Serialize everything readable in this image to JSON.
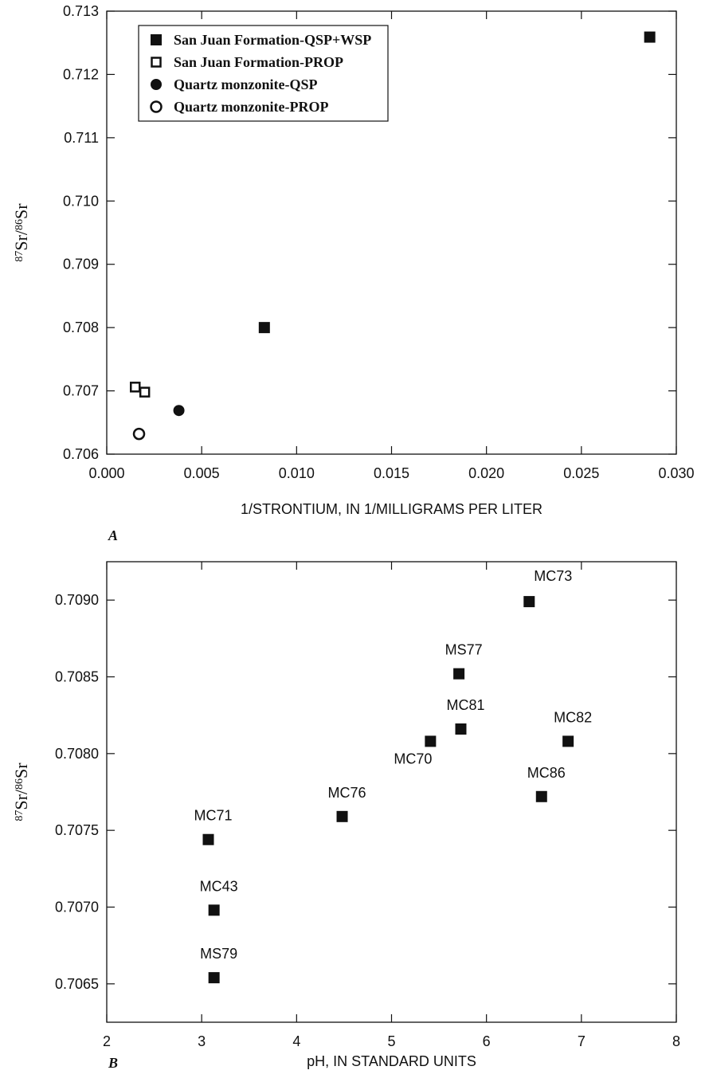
{
  "chart_data": [
    {
      "type": "scatter",
      "panel": "A",
      "xlabel": "1/STRONTIUM, IN 1/MILLIGRAMS PER LITER",
      "ylabel": {
        "sup1": "87",
        "base1": "Sr/",
        "sup2": "86",
        "base2": "Sr"
      },
      "xlim": [
        0,
        0.03
      ],
      "ylim": [
        0.706,
        0.713
      ],
      "xticks": [
        {
          "value": 0,
          "label": "0.000"
        },
        0.005,
        {
          "value": 0.01,
          "label": "0.010"
        },
        0.015,
        {
          "value": 0.02,
          "label": "0.020"
        },
        0.025,
        {
          "value": 0.03,
          "label": "0.030"
        }
      ],
      "yticks": [
        0.706,
        0.707,
        0.708,
        0.709,
        {
          "value": 0.71,
          "label": "0.710"
        },
        0.711,
        0.712,
        0.713
      ],
      "legend": "upper left",
      "series": [
        {
          "name": "San Juan Formation-QSP+WSP",
          "color": "#111111",
          "marker": "square",
          "filled": true,
          "x": [
            0.0083,
            0.0286
          ],
          "values": [
            0.708,
            0.71259
          ]
        },
        {
          "name": "San Juan Formation-PROP",
          "color": "#111111",
          "marker": "square",
          "filled": false,
          "x": [
            0.0015,
            0.002
          ],
          "values": [
            0.70706,
            0.70698
          ]
        },
        {
          "name": "Quartz monzonite-QSP",
          "color": "#111111",
          "marker": "circle",
          "filled": true,
          "x": [
            0.0038
          ],
          "values": [
            0.70669
          ]
        },
        {
          "name": "Quartz monzonite-PROP",
          "color": "#111111",
          "marker": "circle",
          "filled": false,
          "x": [
            0.0017
          ],
          "values": [
            0.70632
          ]
        }
      ]
    },
    {
      "type": "scatter",
      "panel": "B",
      "xlabel": "pH, IN STANDARD UNITS",
      "ylabel": {
        "sup1": "87",
        "base1": "Sr/",
        "sup2": "86",
        "base2": "Sr"
      },
      "xlim": [
        2,
        8
      ],
      "ylim": [
        0.70625,
        0.70925
      ],
      "xticks": [
        2,
        3,
        4,
        5,
        6,
        7,
        8
      ],
      "yticks": [
        0.7065,
        {
          "value": 0.707,
          "label": "0.7070"
        },
        0.7075,
        {
          "value": 0.708,
          "label": "0.7080"
        },
        0.7085,
        {
          "value": 0.709,
          "label": "0.7090"
        }
      ],
      "series": [
        {
          "color": "#111111",
          "marker": "square",
          "filled": true,
          "labels": [
            "MC73",
            "MS77",
            "MC81",
            "MC70",
            "MC82",
            "MC86",
            "MC76",
            "MC71",
            "MC43",
            "MS79"
          ],
          "x": [
            6.45,
            5.71,
            5.73,
            5.41,
            6.86,
            6.58,
            4.48,
            3.07,
            3.13,
            3.13
          ],
          "values": [
            0.70899,
            0.70852,
            0.70816,
            0.70808,
            0.70808,
            0.70772,
            0.70759,
            0.70744,
            0.70698,
            0.70654
          ]
        }
      ]
    }
  ]
}
